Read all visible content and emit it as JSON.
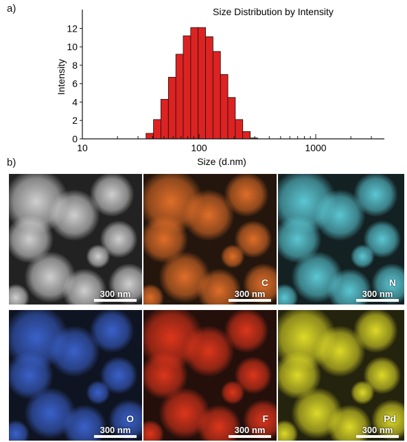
{
  "panels": {
    "a": "a)",
    "b": "b)"
  },
  "chart_data": {
    "type": "bar",
    "title": "Size Distribution by Intensity",
    "xlabel": "Size (d.nm)",
    "ylabel": "Intensity",
    "x_scale": "log",
    "xlim": [
      10,
      3000
    ],
    "ylim": [
      0,
      13
    ],
    "x_ticks": [
      10,
      100,
      1000
    ],
    "y_ticks": [
      0,
      2,
      4,
      6,
      8,
      10,
      12
    ],
    "bar_color": "#dd2222",
    "categories": [
      37.8,
      43.8,
      50.7,
      58.8,
      68.1,
      78.8,
      91.3,
      105.7,
      122.4,
      141.8,
      164.2,
      190.1,
      220.2,
      255.0,
      295.3
    ],
    "values": [
      0.6,
      2.1,
      4.3,
      6.7,
      9.2,
      11.2,
      12.1,
      12.1,
      11.1,
      9.5,
      7.0,
      4.5,
      2.1,
      0.8,
      0.1
    ]
  },
  "maps": [
    {
      "id": "haadf",
      "element": "",
      "scale": "300 nm",
      "color": "#d8d8d8"
    },
    {
      "id": "carbon",
      "element": "C",
      "scale": "300 nm",
      "color": "#e8722a"
    },
    {
      "id": "nitrogen",
      "element": "N",
      "scale": "300 nm",
      "color": "#5ecfdc"
    },
    {
      "id": "oxygen",
      "element": "O",
      "scale": "300 nm",
      "color": "#3c64d2"
    },
    {
      "id": "fluorine",
      "element": "F",
      "scale": "300 nm",
      "color": "#e6371c"
    },
    {
      "id": "palladium",
      "element": "Pd",
      "scale": "300 nm",
      "color": "#e6e22a"
    }
  ]
}
